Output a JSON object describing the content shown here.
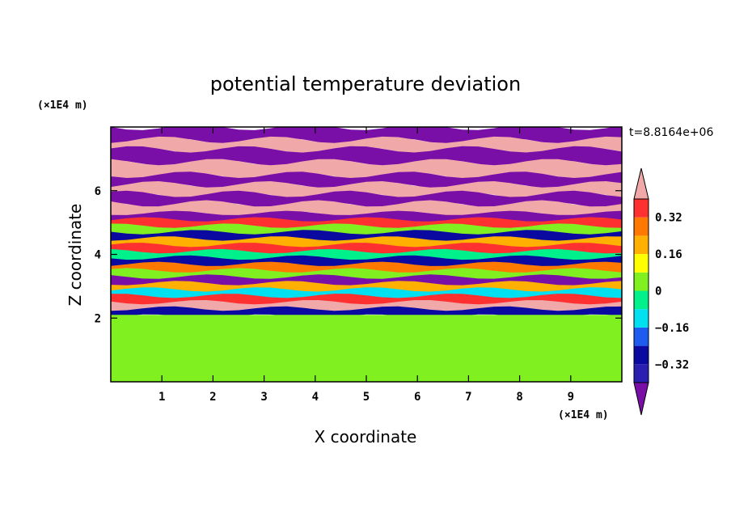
{
  "chart_data": {
    "type": "heatmap",
    "title": "potential temperature deviation",
    "xlabel": "X coordinate",
    "ylabel": "Z coordinate",
    "x_unit": "(×1E4 m)",
    "y_unit": "(×1E4 m)",
    "time_label": "t=8.8164e+06",
    "xlim": [
      0,
      10
    ],
    "ylim": [
      0,
      8
    ],
    "x_ticks": [
      "1",
      "2",
      "3",
      "4",
      "5",
      "6",
      "7",
      "8",
      "9"
    ],
    "y_ticks": [
      "2",
      "4",
      "6"
    ],
    "colorbar": {
      "levels": [
        -0.48,
        -0.4,
        -0.32,
        -0.24,
        -0.16,
        -0.08,
        0,
        0.08,
        0.16,
        0.24,
        0.32,
        0.4,
        0.48
      ],
      "labels": [
        "0.32",
        "0.16",
        "0",
        "−0.16",
        "−0.32"
      ],
      "colors": [
        "#7a0fa8",
        "#2a1fb0",
        "#0a0aa0",
        "#1e5cf0",
        "#00e0f0",
        "#00f08c",
        "#80f020",
        "#ffff00",
        "#ffb000",
        "#ff7800",
        "#ff3030",
        "#f0a8a8"
      ]
    },
    "bands": [
      {
        "z_top": 8.0,
        "z_bottom": 7.6,
        "value": -0.48
      },
      {
        "z_top": 7.6,
        "z_bottom": 7.3,
        "value": 0.48
      },
      {
        "z_top": 7.3,
        "z_bottom": 6.9,
        "value": -0.48
      },
      {
        "z_top": 6.9,
        "z_bottom": 6.5,
        "value": 0.48
      },
      {
        "z_top": 6.5,
        "z_bottom": 6.2,
        "value": -0.48
      },
      {
        "z_top": 6.2,
        "z_bottom": 5.9,
        "value": 0.48
      },
      {
        "z_top": 5.9,
        "z_bottom": 5.6,
        "value": -0.48
      },
      {
        "z_top": 5.6,
        "z_bottom": 5.3,
        "value": 0.48
      },
      {
        "z_top": 5.3,
        "z_bottom": 5.1,
        "value": -0.4
      },
      {
        "z_top": 5.1,
        "z_bottom": 4.9,
        "value": 0.32
      },
      {
        "z_top": 4.9,
        "z_bottom": 4.7,
        "value": 0.0
      },
      {
        "z_top": 4.7,
        "z_bottom": 4.5,
        "value": -0.32
      },
      {
        "z_top": 4.5,
        "z_bottom": 4.3,
        "value": 0.16
      },
      {
        "z_top": 4.3,
        "z_bottom": 4.1,
        "value": 0.32
      },
      {
        "z_top": 4.1,
        "z_bottom": 3.9,
        "value": -0.08
      },
      {
        "z_top": 3.9,
        "z_bottom": 3.7,
        "value": -0.32
      },
      {
        "z_top": 3.7,
        "z_bottom": 3.5,
        "value": 0.24
      },
      {
        "z_top": 3.5,
        "z_bottom": 3.3,
        "value": 0.0
      },
      {
        "z_top": 3.3,
        "z_bottom": 3.1,
        "value": -0.4
      },
      {
        "z_top": 3.1,
        "z_bottom": 2.9,
        "value": 0.16
      },
      {
        "z_top": 2.9,
        "z_bottom": 2.7,
        "value": -0.16
      },
      {
        "z_top": 2.7,
        "z_bottom": 2.5,
        "value": 0.32
      },
      {
        "z_top": 2.5,
        "z_bottom": 2.3,
        "value": 0.48
      },
      {
        "z_top": 2.3,
        "z_bottom": 2.1,
        "value": -0.32
      },
      {
        "z_top": 2.1,
        "z_bottom": 0.0,
        "value": 0.04
      }
    ]
  }
}
